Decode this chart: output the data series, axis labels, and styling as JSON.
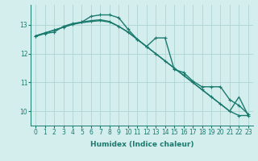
{
  "xlabel": "Humidex (Indice chaleur)",
  "x_values": [
    0,
    1,
    2,
    3,
    4,
    5,
    6,
    7,
    8,
    9,
    10,
    11,
    12,
    13,
    14,
    15,
    16,
    17,
    18,
    19,
    20,
    21,
    22,
    23
  ],
  "line_marked": [
    12.6,
    12.7,
    12.75,
    12.95,
    13.05,
    13.1,
    13.3,
    13.35,
    13.35,
    13.25,
    12.85,
    12.5,
    12.25,
    12.55,
    12.55,
    11.45,
    11.35,
    11.05,
    10.85,
    10.85,
    10.85,
    10.4,
    10.2,
    9.9
  ],
  "line_straight1": [
    12.62,
    12.72,
    12.82,
    12.92,
    13.02,
    13.1,
    13.15,
    13.18,
    13.12,
    12.95,
    12.75,
    12.5,
    12.25,
    12.0,
    11.75,
    11.5,
    11.25,
    11.0,
    10.75,
    10.5,
    10.25,
    10.0,
    9.85,
    9.85
  ],
  "line_straight2": [
    12.62,
    12.72,
    12.82,
    12.92,
    13.02,
    13.08,
    13.12,
    13.15,
    13.1,
    12.95,
    12.75,
    12.5,
    12.25,
    12.0,
    11.75,
    11.5,
    11.25,
    11.0,
    10.75,
    10.5,
    10.25,
    10.0,
    10.5,
    9.85
  ],
  "line_color": "#1a7a6e",
  "bg_color": "#d4eeee",
  "grid_color": "#aed4d4",
  "ylim": [
    9.5,
    13.7
  ],
  "yticks": [
    10,
    11,
    12,
    13
  ],
  "xlim": [
    -0.5,
    23.5
  ],
  "markersize": 3,
  "linewidth": 1.0,
  "label_fontsize": 6.5,
  "tick_fontsize": 5.5
}
